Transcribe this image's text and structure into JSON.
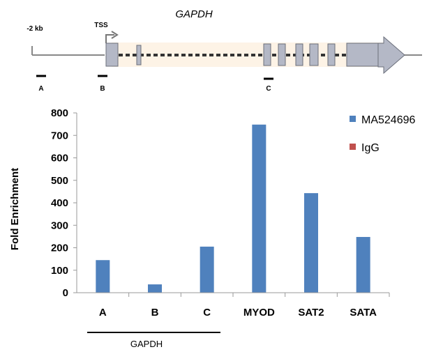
{
  "gene_map": {
    "gene_name": "GAPDH",
    "upstream_label": "-2 kb",
    "tss_label": "TSS",
    "amplicons": [
      "A",
      "B",
      "C"
    ],
    "box_color": "#b4b8c6",
    "highlight_color": "#fdf3e6"
  },
  "chart_data": {
    "type": "bar",
    "categories": [
      "A",
      "B",
      "C",
      "MYOD",
      "SAT2",
      "SATA"
    ],
    "series": [
      {
        "name": "MA524696",
        "color": "#4f81bd",
        "values": [
          145,
          37,
          205,
          748,
          443,
          248
        ]
      },
      {
        "name": "IgG",
        "color": "#c0504d",
        "values": [
          0,
          0,
          0,
          0,
          0,
          0
        ]
      }
    ],
    "ylabel": "Fold Enrichment",
    "ylim": [
      0,
      800
    ],
    "yticks": [
      0,
      100,
      200,
      300,
      400,
      500,
      600,
      700,
      800
    ],
    "group_label": "GAPDH",
    "grid": false,
    "legend_position": "right"
  }
}
